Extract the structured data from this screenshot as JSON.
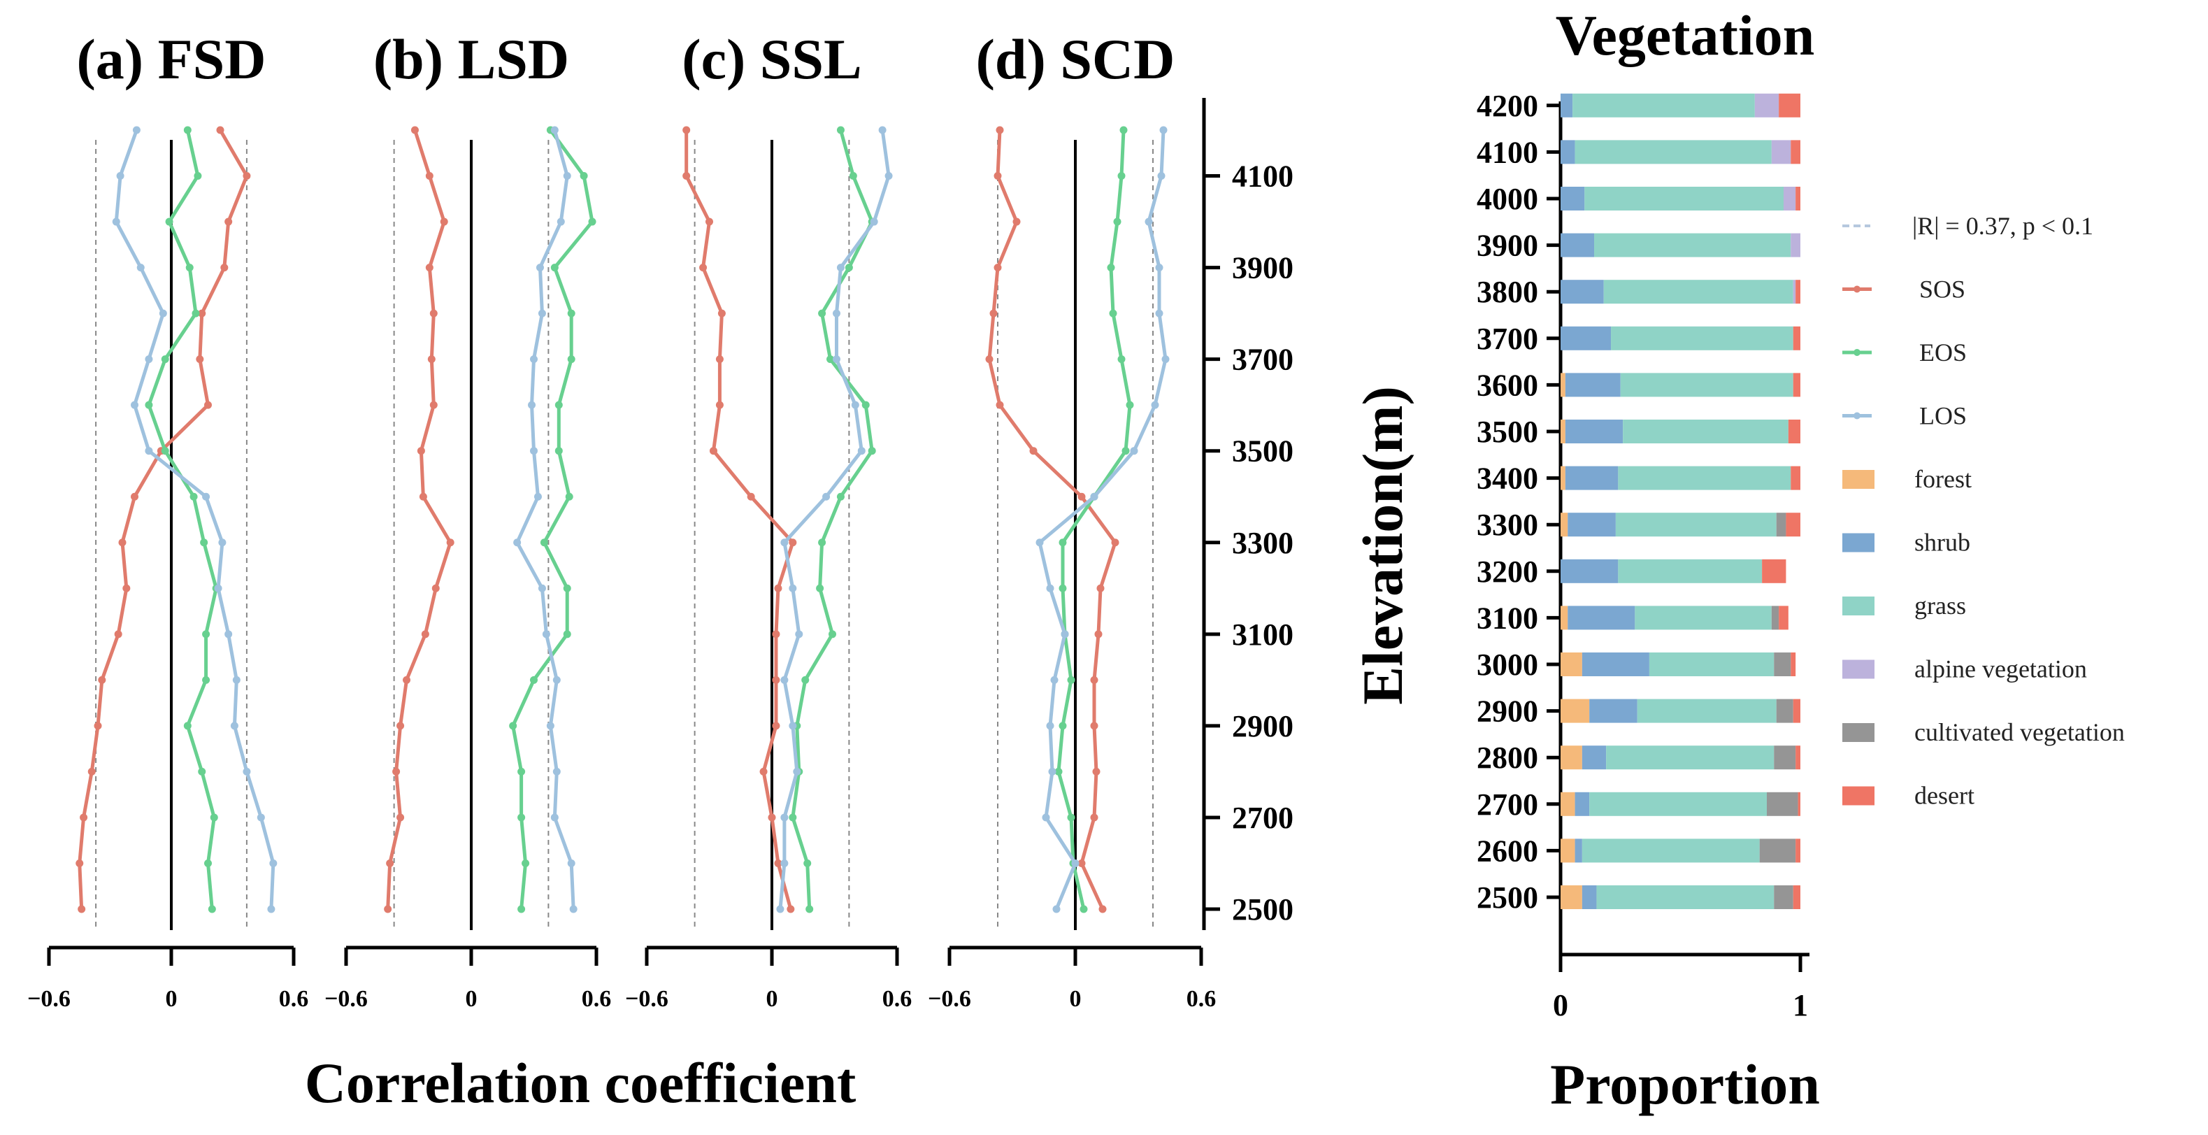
{
  "chart_data": [
    {
      "type": "line",
      "title": "(a) FSD",
      "xlabel": "Correlation coefficient",
      "ylabel": "",
      "xlim": [
        -0.6,
        0.6
      ],
      "x_ticks": [
        "−0.6",
        "0",
        "0.6"
      ],
      "threshold": 0.37,
      "elevation": [
        2500,
        2600,
        2700,
        2800,
        2900,
        3000,
        3100,
        3200,
        3300,
        3400,
        3500,
        3600,
        3700,
        3800,
        3900,
        4000,
        4100,
        4200
      ],
      "series": [
        {
          "name": "SOS",
          "color": "#e07b6c",
          "values": [
            -0.44,
            -0.45,
            -0.43,
            -0.39,
            -0.36,
            -0.34,
            -0.26,
            -0.22,
            -0.24,
            -0.18,
            -0.05,
            0.18,
            0.14,
            0.15,
            0.26,
            0.28,
            0.37,
            0.24
          ]
        },
        {
          "name": "EOS",
          "color": "#67d08f",
          "values": [
            0.2,
            0.18,
            0.21,
            0.15,
            0.08,
            0.17,
            0.17,
            0.22,
            0.16,
            0.11,
            -0.03,
            -0.11,
            -0.03,
            0.12,
            0.09,
            -0.01,
            0.13,
            0.08
          ]
        },
        {
          "name": "LOS",
          "color": "#9ec1de",
          "values": [
            0.49,
            0.5,
            0.44,
            0.37,
            0.31,
            0.32,
            0.28,
            0.23,
            0.25,
            0.17,
            -0.11,
            -0.18,
            -0.11,
            -0.04,
            -0.15,
            -0.27,
            -0.25,
            -0.17
          ]
        }
      ]
    },
    {
      "type": "line",
      "title": "(b) LSD",
      "xlabel": "Correlation coefficient",
      "ylabel": "",
      "xlim": [
        -0.6,
        0.6
      ],
      "x_ticks": [
        "−0.6",
        "0",
        "0.6"
      ],
      "threshold": 0.37,
      "elevation": [
        2500,
        2600,
        2700,
        2800,
        2900,
        3000,
        3100,
        3200,
        3300,
        3400,
        3500,
        3600,
        3700,
        3800,
        3900,
        4000,
        4100,
        4200
      ],
      "series": [
        {
          "name": "SOS",
          "color": "#e07b6c",
          "values": [
            -0.4,
            -0.39,
            -0.34,
            -0.36,
            -0.34,
            -0.31,
            -0.22,
            -0.17,
            -0.1,
            -0.23,
            -0.24,
            -0.18,
            -0.19,
            -0.18,
            -0.2,
            -0.13,
            -0.2,
            -0.27
          ]
        },
        {
          "name": "EOS",
          "color": "#67d08f",
          "values": [
            0.24,
            0.26,
            0.24,
            0.24,
            0.2,
            0.3,
            0.46,
            0.46,
            0.35,
            0.47,
            0.42,
            0.42,
            0.48,
            0.48,
            0.4,
            0.58,
            0.54,
            0.38
          ]
        },
        {
          "name": "LOS",
          "color": "#9ec1de",
          "values": [
            0.49,
            0.48,
            0.4,
            0.41,
            0.38,
            0.41,
            0.36,
            0.34,
            0.22,
            0.32,
            0.3,
            0.29,
            0.3,
            0.34,
            0.33,
            0.43,
            0.46,
            0.4
          ]
        }
      ]
    },
    {
      "type": "line",
      "title": "(c) SSL",
      "xlabel": "Correlation coefficient",
      "ylabel": "",
      "xlim": [
        -0.6,
        0.6
      ],
      "x_ticks": [
        "−0.6",
        "0",
        "0.6"
      ],
      "threshold": 0.37,
      "elevation": [
        2500,
        2600,
        2700,
        2800,
        2900,
        3000,
        3100,
        3200,
        3300,
        3400,
        3500,
        3600,
        3700,
        3800,
        3900,
        4000,
        4100,
        4200
      ],
      "series": [
        {
          "name": "SOS",
          "color": "#e07b6c",
          "values": [
            0.09,
            0.03,
            0.0,
            -0.04,
            0.02,
            0.02,
            0.02,
            0.03,
            0.1,
            -0.1,
            -0.28,
            -0.25,
            -0.25,
            -0.24,
            -0.33,
            -0.3,
            -0.41,
            -0.41
          ]
        },
        {
          "name": "EOS",
          "color": "#67d08f",
          "values": [
            0.18,
            0.17,
            0.1,
            0.13,
            0.12,
            0.16,
            0.29,
            0.23,
            0.24,
            0.33,
            0.48,
            0.45,
            0.28,
            0.24,
            0.37,
            0.48,
            0.39,
            0.33
          ]
        },
        {
          "name": "LOS",
          "color": "#9ec1de",
          "values": [
            0.04,
            0.06,
            0.06,
            0.12,
            0.1,
            0.06,
            0.13,
            0.1,
            0.06,
            0.26,
            0.43,
            0.4,
            0.31,
            0.31,
            0.33,
            0.49,
            0.56,
            0.53
          ]
        }
      ]
    },
    {
      "type": "line",
      "title": "(d) SCD",
      "xlabel": "Correlation coefficient",
      "ylabel": "",
      "xlim": [
        -0.6,
        0.6
      ],
      "x_ticks": [
        "−0.6",
        "0",
        "0.6"
      ],
      "threshold": 0.37,
      "elevation": [
        2500,
        2600,
        2700,
        2800,
        2900,
        3000,
        3100,
        3200,
        3300,
        3400,
        3500,
        3600,
        3700,
        3800,
        3900,
        4000,
        4100,
        4200
      ],
      "series": [
        {
          "name": "SOS",
          "color": "#e07b6c",
          "values": [
            0.13,
            0.03,
            0.09,
            0.1,
            0.09,
            0.09,
            0.11,
            0.12,
            0.19,
            0.03,
            -0.2,
            -0.36,
            -0.41,
            -0.39,
            -0.37,
            -0.28,
            -0.37,
            -0.36
          ]
        },
        {
          "name": "EOS",
          "color": "#67d08f",
          "values": [
            0.04,
            -0.01,
            -0.02,
            -0.08,
            -0.06,
            -0.02,
            -0.05,
            -0.06,
            -0.06,
            0.09,
            0.24,
            0.26,
            0.22,
            0.18,
            0.17,
            0.2,
            0.22,
            0.23
          ]
        },
        {
          "name": "LOS",
          "color": "#9ec1de",
          "values": [
            -0.09,
            0.0,
            -0.14,
            -0.11,
            -0.12,
            -0.1,
            -0.05,
            -0.12,
            -0.17,
            0.09,
            0.28,
            0.38,
            0.43,
            0.4,
            0.4,
            0.35,
            0.41,
            0.42
          ]
        }
      ]
    },
    {
      "type": "bar",
      "orientation": "horizontal",
      "stacked": true,
      "title": "Vegetation",
      "xlabel": "Proportion",
      "ylabel": "Elevation(m)",
      "xlim": [
        0,
        1
      ],
      "x_ticks": [
        "0",
        "1"
      ],
      "categories": [
        "2500",
        "2600",
        "2700",
        "2800",
        "2900",
        "3000",
        "3100",
        "3200",
        "3300",
        "3400",
        "3500",
        "3600",
        "3700",
        "3800",
        "3900",
        "4000",
        "4100",
        "4200"
      ],
      "series": [
        {
          "name": "forest",
          "color": "#f5b97a",
          "values": [
            0.09,
            0.06,
            0.06,
            0.09,
            0.12,
            0.09,
            0.03,
            0.0,
            0.03,
            0.02,
            0.02,
            0.02,
            0.0,
            0.0,
            0.0,
            0.0,
            0.0,
            0.0
          ]
        },
        {
          "name": "shrub",
          "color": "#7ba7d1",
          "values": [
            0.06,
            0.03,
            0.06,
            0.1,
            0.2,
            0.28,
            0.28,
            0.24,
            0.2,
            0.22,
            0.24,
            0.23,
            0.21,
            0.18,
            0.14,
            0.1,
            0.06,
            0.05
          ]
        },
        {
          "name": "grass",
          "color": "#8fd3c6",
          "values": [
            0.74,
            0.74,
            0.74,
            0.7,
            0.58,
            0.52,
            0.57,
            0.6,
            0.67,
            0.72,
            0.69,
            0.72,
            0.76,
            0.79,
            0.82,
            0.83,
            0.82,
            0.76
          ]
        },
        {
          "name": "alpine vegetation",
          "color": "#bcb2dc",
          "values": [
            0.0,
            0.0,
            0.0,
            0.0,
            0.0,
            0.0,
            0.0,
            0.0,
            0.0,
            0.0,
            0.0,
            0.0,
            0.0,
            0.01,
            0.04,
            0.05,
            0.08,
            0.1
          ]
        },
        {
          "name": "cultivated vegetation",
          "color": "#959595",
          "values": [
            0.08,
            0.15,
            0.13,
            0.09,
            0.07,
            0.07,
            0.03,
            0.0,
            0.04,
            0.0,
            0.0,
            0.0,
            0.0,
            0.0,
            0.0,
            0.0,
            0.0,
            0.0
          ]
        },
        {
          "name": "desert",
          "color": "#ef7565",
          "values": [
            0.03,
            0.02,
            0.01,
            0.02,
            0.03,
            0.02,
            0.04,
            0.1,
            0.06,
            0.04,
            0.05,
            0.03,
            0.03,
            0.02,
            0.0,
            0.02,
            0.04,
            0.09
          ]
        }
      ]
    }
  ],
  "legend": {
    "threshold_label": "|R| = 0.37, p < 0.1",
    "items": [
      "SOS",
      "EOS",
      "LOS",
      "forest",
      "shrub",
      "grass",
      "alpine vegetation",
      "cultivated vegetation",
      "desert"
    ]
  },
  "shared": {
    "elevation_tick_labels": [
      "2500",
      "2700",
      "2900",
      "3100",
      "3300",
      "3500",
      "3700",
      "3900",
      "4100"
    ],
    "correlation_xlabel": "Correlation coefficient"
  },
  "colors": {
    "axis": "#000000",
    "threshold_line": "#888888",
    "threshold_legend": "#b6c8de"
  }
}
